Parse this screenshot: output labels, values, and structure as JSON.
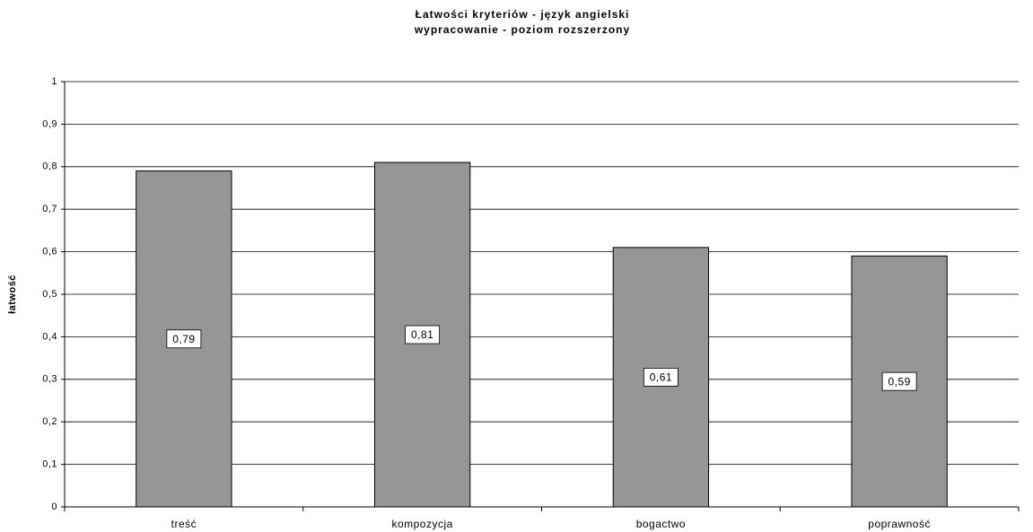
{
  "chart_data": {
    "type": "bar",
    "title": "Łatwości kryteriów - język angielski",
    "subtitle": "wypracowanie - poziom rozszerzony",
    "y_label": "łatwość",
    "categories": [
      "treść",
      "kompozycja",
      "bogactwo",
      "poprawność"
    ],
    "values": [
      0.79,
      0.81,
      0.61,
      0.59
    ],
    "value_labels": [
      "0,79",
      "0,81",
      "0,61",
      "0,59"
    ],
    "color": "#969696",
    "ylim": [
      0,
      1
    ],
    "yticks": [
      0,
      {
        "value": 0.1,
        "label": "0,1"
      },
      {
        "value": 0.2,
        "label": "0,2"
      },
      {
        "value": 0.3,
        "label": "0,3"
      },
      {
        "value": 0.4,
        "label": "0,4"
      },
      {
        "value": 0.5,
        "label": "0,5"
      },
      {
        "value": 0.6,
        "label": "0,6"
      },
      {
        "value": 0.7,
        "label": "0,7"
      },
      {
        "value": 0.8,
        "label": "0,8"
      },
      {
        "value": 0.9,
        "label": "0,9"
      },
      1
    ],
    "grid": true
  }
}
